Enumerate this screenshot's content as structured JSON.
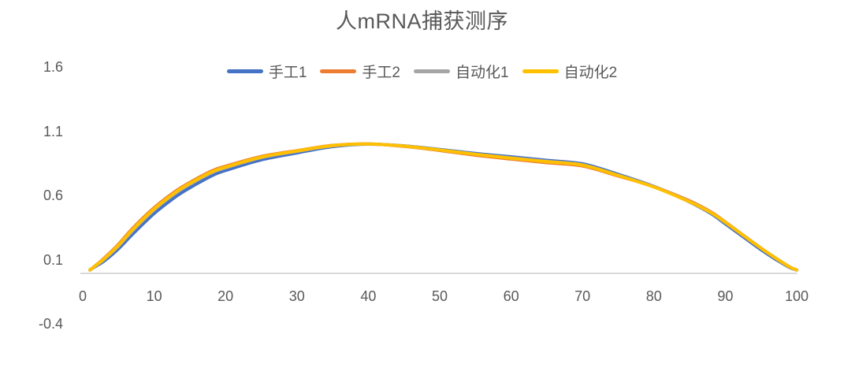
{
  "chart_data": {
    "type": "line",
    "title": "人mRNA捕获测序",
    "xlabel": "",
    "ylabel": "",
    "xlim": [
      0,
      100
    ],
    "ylim": [
      -0.4,
      1.6
    ],
    "grid": false,
    "legend_position": "top",
    "x_ticks": [
      0,
      10,
      20,
      30,
      40,
      50,
      60,
      70,
      80,
      90,
      100
    ],
    "y_ticks": [
      1.6,
      1.1,
      0.6,
      0.1,
      -0.4
    ],
    "x": [
      1,
      2,
      3,
      5,
      7,
      10,
      13,
      15,
      18,
      20,
      25,
      30,
      35,
      40,
      45,
      50,
      55,
      60,
      65,
      70,
      75,
      80,
      85,
      88,
      90,
      93,
      95,
      97,
      99,
      100
    ],
    "series": [
      {
        "name": "手工1",
        "color": "#4472C4",
        "values": [
          0.02,
          0.055,
          0.09,
          0.185,
          0.3,
          0.46,
          0.59,
          0.66,
          0.752,
          0.795,
          0.878,
          0.932,
          0.981,
          1.0,
          0.987,
          0.959,
          0.928,
          0.902,
          0.874,
          0.847,
          0.765,
          0.671,
          0.55,
          0.459,
          0.38,
          0.258,
          0.178,
          0.105,
          0.04,
          0.02
        ]
      },
      {
        "name": "手工2",
        "color": "#ED7D31",
        "values": [
          0.02,
          0.065,
          0.112,
          0.22,
          0.345,
          0.505,
          0.634,
          0.702,
          0.79,
          0.828,
          0.904,
          0.95,
          0.991,
          1.002,
          0.983,
          0.951,
          0.914,
          0.884,
          0.856,
          0.83,
          0.752,
          0.669,
          0.558,
          0.472,
          0.394,
          0.271,
          0.19,
          0.115,
          0.045,
          0.02
        ]
      },
      {
        "name": "自动化1",
        "color": "#A5A5A5",
        "values": [
          0.02,
          0.06,
          0.103,
          0.205,
          0.327,
          0.488,
          0.618,
          0.687,
          0.776,
          0.816,
          0.895,
          0.944,
          0.987,
          1.001,
          0.985,
          0.955,
          0.922,
          0.893,
          0.866,
          0.839,
          0.758,
          0.668,
          0.553,
          0.467,
          0.392,
          0.271,
          0.191,
          0.115,
          0.045,
          0.02
        ]
      },
      {
        "name": "自动化2",
        "color": "#FFC000",
        "values": [
          0.02,
          0.063,
          0.107,
          0.212,
          0.335,
          0.496,
          0.625,
          0.694,
          0.782,
          0.821,
          0.899,
          0.947,
          0.989,
          1.001,
          0.985,
          0.955,
          0.921,
          0.891,
          0.864,
          0.837,
          0.756,
          0.666,
          0.551,
          0.466,
          0.391,
          0.27,
          0.19,
          0.115,
          0.045,
          0.02
        ]
      }
    ],
    "axis_line_color": "#D9D9D9",
    "text_color": "#595959"
  }
}
